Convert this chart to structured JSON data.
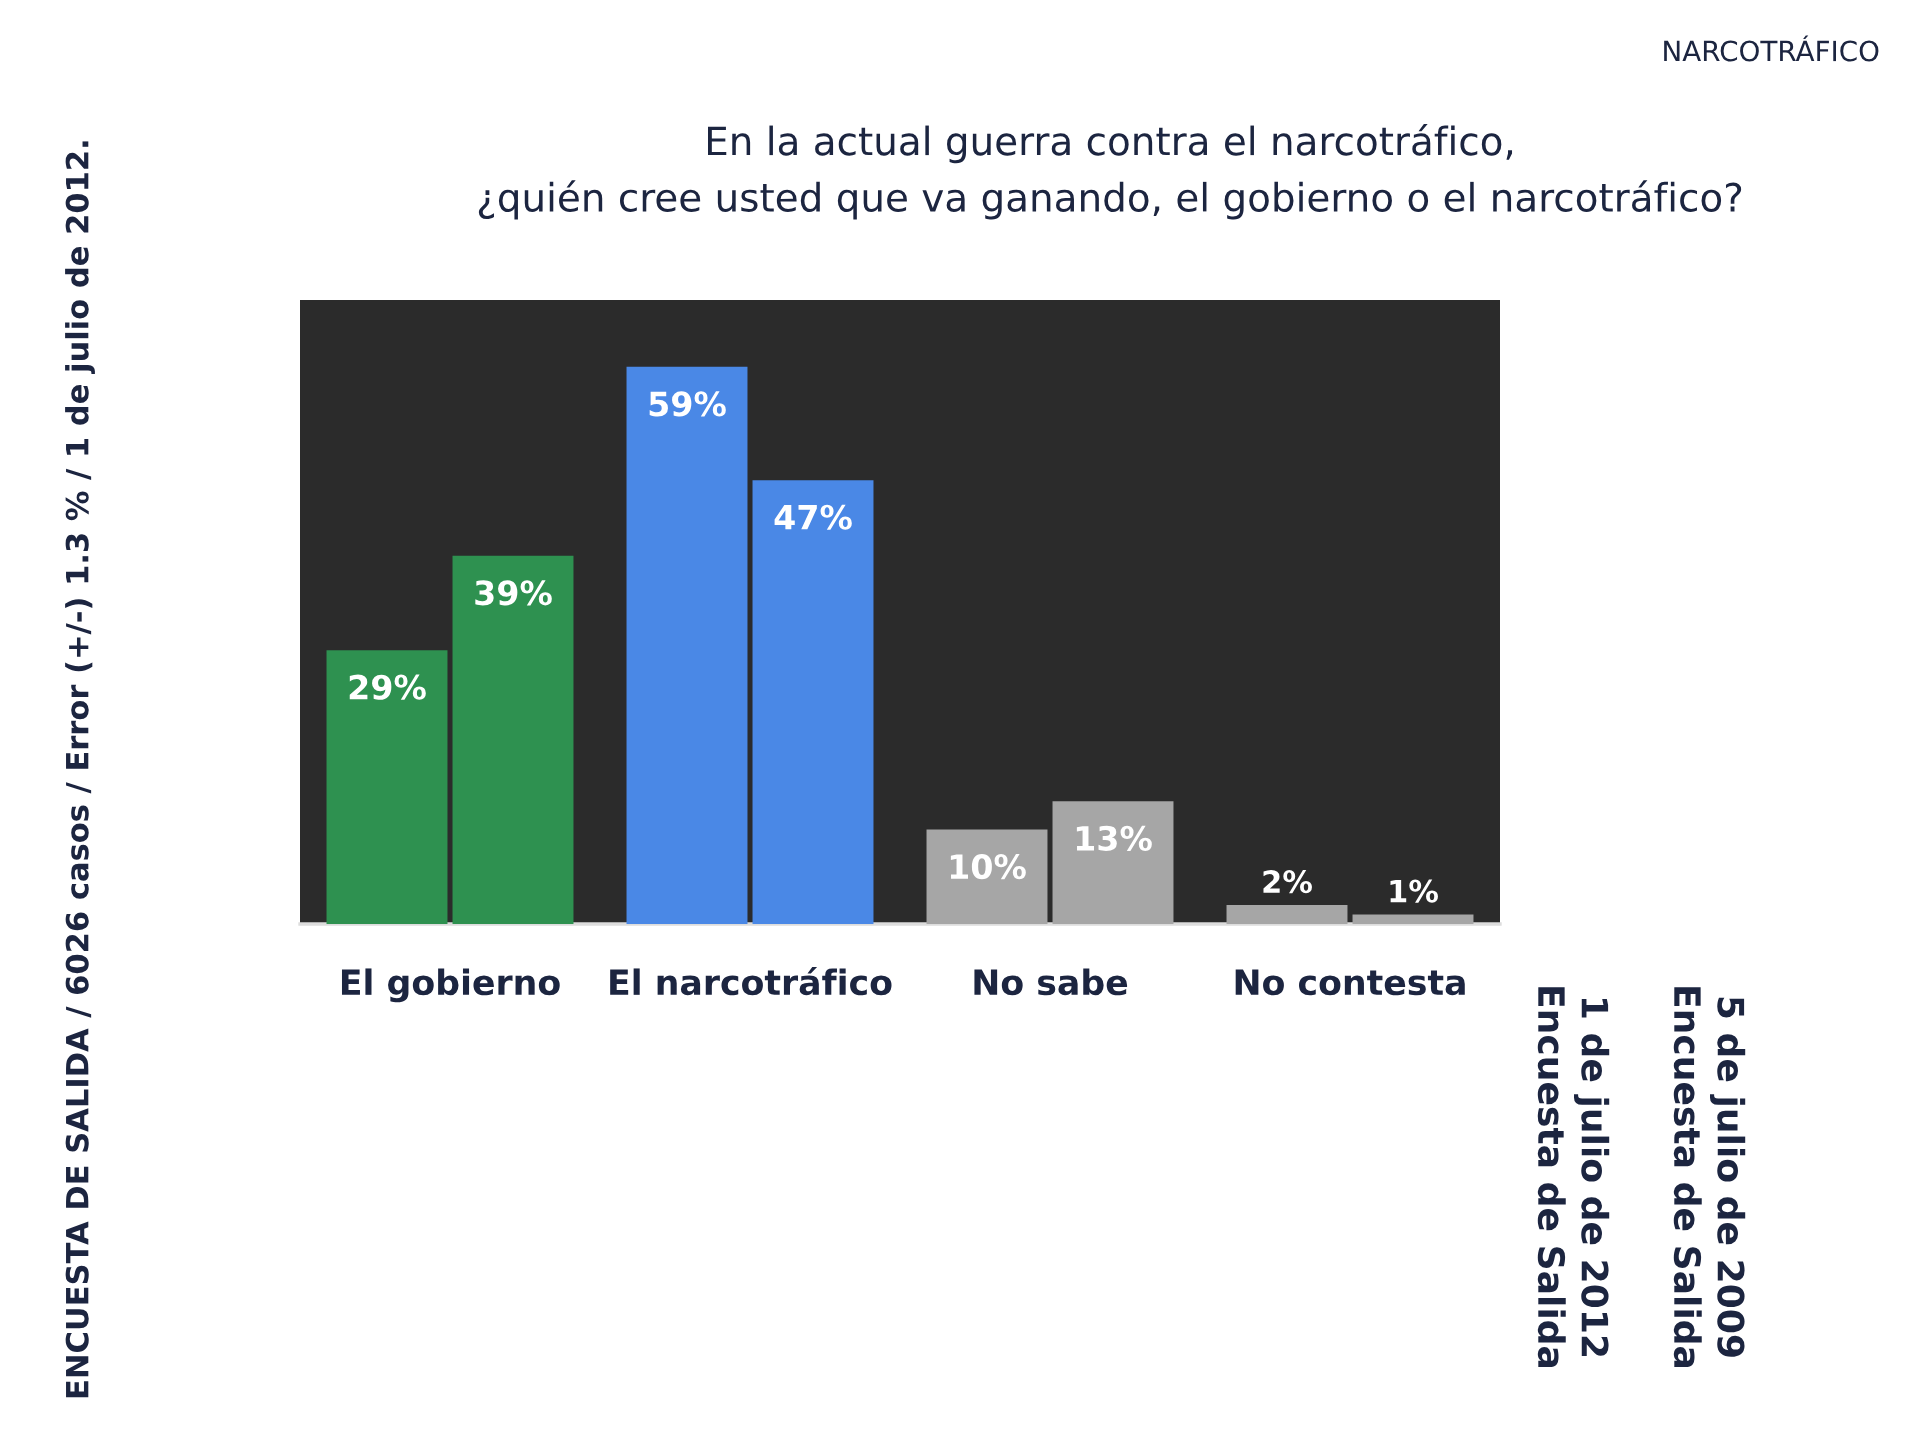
{
  "chart_data": {
    "type": "bar",
    "title": "En la actual guerra contra el narcotráfico,\n¿quién cree usted que va ganando, el gobierno o el narcotráfico?",
    "categories": [
      "El gobierno",
      "El narcotráfico",
      "No sabe",
      "No contesta"
    ],
    "series": [
      {
        "name": "1 de julio de 2012\nEncuesta de Salida",
        "colors": [
          "#2e9150",
          "#4a88e6",
          "#a6a6a6",
          "#a6a6a6"
        ],
        "values": [
          29,
          59,
          10,
          2
        ],
        "value_labels": [
          "29%",
          "59%",
          "10%",
          "2%"
        ]
      },
      {
        "name": "5 de julio de 2009\nEncuesta de Salida",
        "colors": [
          "#2e9150",
          "#4a88e6",
          "#a6a6a6",
          "#a6a6a6"
        ],
        "values": [
          39,
          47,
          13,
          1
        ],
        "value_labels": [
          "39%",
          "47%",
          "13%",
          "1%"
        ]
      }
    ],
    "annotations": [
      "NARCOTRÁFICO",
      "ENCUESTA DE SALIDA / 6026 casos / Error (+/-) 1.3 % / 1 de julio de 2012."
    ]
  }
}
